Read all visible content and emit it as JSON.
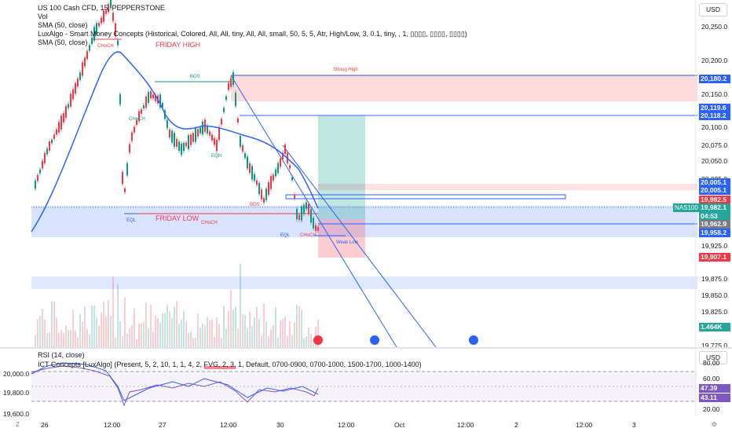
{
  "symbol_title": "US 100 Cash CFD, 15, PEPPERSTONE",
  "indicators": {
    "vol": "Vol",
    "sma1": "SMA (50, close)",
    "luxalgo": "LuxAlgo - Smart Money Concepts (Historical, Colored, All, All, tiny, All, All, small, 50, 5, 5, Atr, High/Low, 3, 0.1, tiny, , 1, ▯▯▯▯, ▯▯▯▯, ▯▯▯▯)",
    "sma2": "SMA (50, close)",
    "rsi": "RSI (14, close)",
    "ict": "ICT Concepts [LuxAlgo] (Present, 5, 2, 10, 1, 1, 4, 2, FVG, 2, 3, 1, Default, 0700-0900, 0700-1000, 1500-1700, 1000-1400)"
  },
  "currency_button": "USD",
  "sub_currency_button": "USD",
  "y_axis_main": [
    "20,250.0",
    "20,200.0",
    "20,150.0",
    "20,100.0",
    "20,075.0",
    "20,050.0",
    "20,025.0",
    "19,975.0",
    "19,925.0",
    "19,900.0",
    "19,875.0",
    "19,850.0",
    "19,825.0",
    "19,800.0",
    "19,775.0"
  ],
  "price_tags": [
    {
      "label": "20,180.2",
      "color": "#2962ff"
    },
    {
      "label": "20,119.6",
      "color": "#2962ff"
    },
    {
      "label": "20,118.2",
      "color": "#2962ff"
    },
    {
      "label": "20,005.1",
      "color": "#2962ff"
    },
    {
      "label": "20,005.1",
      "color": "#2962ff"
    },
    {
      "label": "19,982.5",
      "color": "#f23645"
    },
    {
      "label": "19,982.1",
      "color": "#26a69a"
    },
    {
      "label": "04:53",
      "color": "#26a69a"
    },
    {
      "label": "19,962.9",
      "color": "#787b86"
    },
    {
      "label": "19,958.2",
      "color": "#2962ff"
    },
    {
      "label": "19,907.1",
      "color": "#f23645"
    },
    {
      "label": "1.464K",
      "color": "#26a69a"
    }
  ],
  "nas_tag": "NAS100",
  "sub_y_axis": [
    "80.00",
    "60.00",
    "20.00"
  ],
  "sub_price_left": [
    "20,000.0",
    "19,800.0",
    "19,600.0"
  ],
  "rsi_tags": [
    {
      "label": "47.39",
      "color": "#7e57c2"
    },
    {
      "label": "43.11",
      "color": "#7e57c2"
    }
  ],
  "x_axis": [
    "26",
    "12:00",
    "27",
    "12:00",
    "30",
    "12:00",
    "Oct",
    "12:00",
    "2",
    "12:00",
    "3"
  ],
  "annotations": {
    "friday_high": "FRIDAY HIGH",
    "friday_low": "FRIDAY LOW",
    "bos": "BOS",
    "choch": "CHoCH",
    "eqh": "EQH",
    "eql": "EQL",
    "strong_high": "Strong High",
    "weak_low": "Weak Low",
    "bos_small": "BOS"
  },
  "colors": {
    "blue": "#2962ff",
    "red": "#f23645",
    "green": "#089981",
    "purple": "#7e57c2"
  }
}
